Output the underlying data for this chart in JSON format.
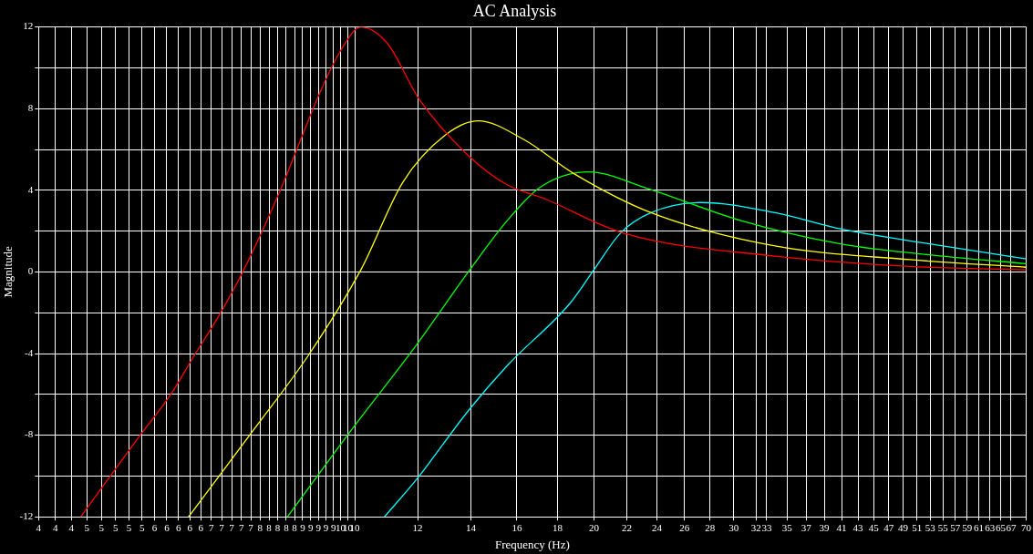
{
  "chart_data": {
    "type": "line",
    "title": "AC Analysis",
    "xlabel": "Frequency (Hz)",
    "ylabel": "Magnitude",
    "log": "x",
    "grid": true,
    "legend": false,
    "marker": "none",
    "line_style": "solid",
    "xlim": [
      4,
      70
    ],
    "ylim": [
      -12,
      12
    ],
    "xticks": [
      {
        "value": 4,
        "label": "4"
      },
      {
        "value": 4.2,
        "label": "4"
      },
      {
        "value": 4.4,
        "label": "4"
      },
      {
        "value": 4.6,
        "label": "5"
      },
      {
        "value": 4.8,
        "label": "5"
      },
      {
        "value": 5,
        "label": "5"
      },
      {
        "value": 5.2,
        "label": "5"
      },
      {
        "value": 5.4,
        "label": "5"
      },
      {
        "value": 5.6,
        "label": "6"
      },
      {
        "value": 5.8,
        "label": "6"
      },
      {
        "value": 6,
        "label": "6"
      },
      {
        "value": 6.2,
        "label": "6"
      },
      {
        "value": 6.4,
        "label": "6"
      },
      {
        "value": 6.6,
        "label": "7"
      },
      {
        "value": 6.8,
        "label": "7"
      },
      {
        "value": 7,
        "label": "7"
      },
      {
        "value": 7.2,
        "label": "7"
      },
      {
        "value": 7.4,
        "label": "7"
      },
      {
        "value": 7.6,
        "label": "8"
      },
      {
        "value": 7.8,
        "label": "8"
      },
      {
        "value": 8,
        "label": "8"
      },
      {
        "value": 8.2,
        "label": "8"
      },
      {
        "value": 8.4,
        "label": "8"
      },
      {
        "value": 8.6,
        "label": "9"
      },
      {
        "value": 8.8,
        "label": "9"
      },
      {
        "value": 9,
        "label": "9"
      },
      {
        "value": 9.2,
        "label": "9"
      },
      {
        "value": 9.4,
        "label": "9"
      },
      {
        "value": 9.6,
        "label": "10"
      },
      {
        "value": 9.8,
        "label": "10"
      },
      10,
      12,
      14,
      16,
      18,
      20,
      22,
      24,
      26,
      28,
      30,
      32,
      33,
      35,
      37,
      39,
      41,
      43,
      45,
      47,
      49,
      51,
      53,
      55,
      57,
      59,
      61,
      63,
      65,
      67,
      70
    ],
    "yticks": [
      -12,
      {
        "value": -10,
        "label": null
      },
      -8,
      {
        "value": -6,
        "label": null
      },
      -4,
      {
        "value": -2,
        "label": null
      },
      0,
      {
        "value": 2,
        "label": null
      },
      4,
      {
        "value": 6,
        "label": null
      },
      8,
      {
        "value": 10,
        "label": null
      },
      12
    ],
    "series": [
      {
        "color": "#ff0000",
        "x": [
          4.52,
          5.3,
          5.88,
          6.28,
          6.71,
          7.23,
          8.04,
          9.08,
          9.62,
          10.18,
          10.99,
          12.06,
          13.9,
          15.55,
          17.3,
          21.8,
          33.8,
          50,
          70
        ],
        "values": [
          -12,
          -8.3,
          -5.95,
          -4.1,
          -2.3,
          0,
          3.9,
          8.95,
          10.9,
          12,
          11.2,
          8.45,
          5.7,
          4.27,
          3.6,
          1.9,
          0.77,
          0.27,
          0.1
        ]
      },
      {
        "color": "#ffff00",
        "x": [
          6.18,
          7.44,
          8.74,
          10.18,
          11.5,
          13,
          14.3,
          16.3,
          18.9,
          23.6,
          33.8,
          50,
          70
        ],
        "values": [
          -12,
          -7.8,
          -4.1,
          0.1,
          4.4,
          6.7,
          7.4,
          6.5,
          4.8,
          2.9,
          1.27,
          0.6,
          0.23
        ]
      },
      {
        "color": "#00ff00",
        "x": [
          8.23,
          9.88,
          12,
          13.9,
          15.55,
          17.2,
          19.7,
          23.3,
          30.7,
          41,
          55,
          70
        ],
        "values": [
          -12,
          -7.8,
          -3.5,
          0,
          2.5,
          4.2,
          4.9,
          4.1,
          2.5,
          1.36,
          0.77,
          0.4
        ]
      },
      {
        "color": "#00ffff",
        "x": [
          10.9,
          12,
          13.9,
          15.55,
          18.7,
          20,
          21.6,
          23.6,
          27.3,
          33.8,
          41,
          55,
          70
        ],
        "values": [
          -12,
          -10.1,
          -6.8,
          -4.6,
          -1.5,
          0.1,
          1.9,
          2.9,
          3.4,
          2.9,
          2.1,
          1.27,
          0.64
        ]
      }
    ]
  }
}
